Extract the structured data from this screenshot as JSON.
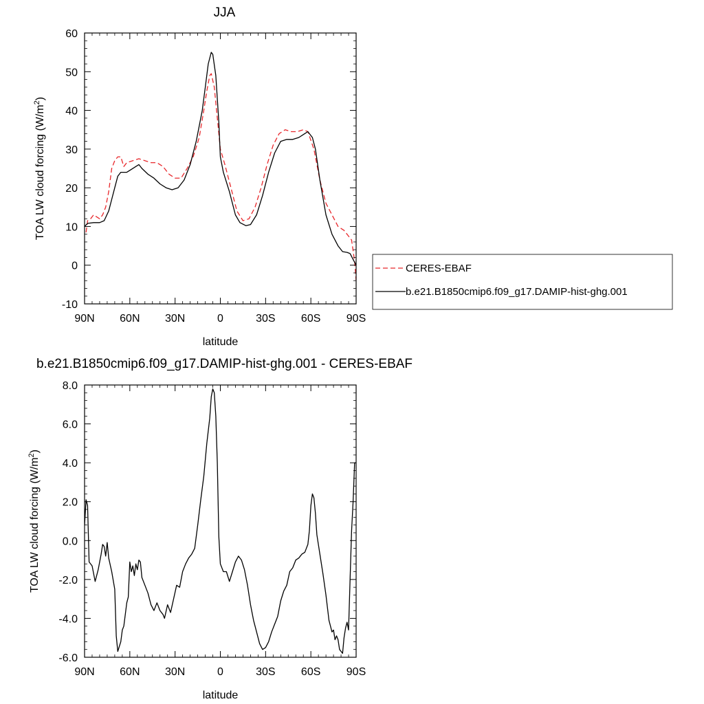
{
  "chart_data": [
    {
      "type": "line",
      "title": "JJA",
      "xlabel": "latitude",
      "ylabel": "TOA LW cloud forcing (W/m",
      "ylabel_sup": "2",
      "ylabel_end": ")",
      "xlim": [
        90,
        -90
      ],
      "ylim": [
        -10,
        60
      ],
      "x_ticks": [
        90,
        60,
        30,
        0,
        -30,
        -60,
        -90
      ],
      "x_tick_labels": [
        "90N",
        "60N",
        "30N",
        "0",
        "30S",
        "60S",
        "90S"
      ],
      "y_ticks": [
        -10,
        0,
        10,
        20,
        30,
        40,
        50,
        60
      ],
      "y_tick_labels": [
        "-10",
        "0",
        "10",
        "20",
        "30",
        "40",
        "50",
        "60"
      ],
      "legend_position": "right",
      "series": [
        {
          "name": "CERES-EBAF",
          "color": "#e8262a",
          "dash": "dashed",
          "points": [
            [
              89,
              8.5
            ],
            [
              88,
              11.5
            ],
            [
              86,
              12
            ],
            [
              84,
              13
            ],
            [
              82,
              12.5
            ],
            [
              80,
              12
            ],
            [
              78,
              13
            ],
            [
              76,
              15
            ],
            [
              74,
              19
            ],
            [
              72,
              25
            ],
            [
              70,
              27
            ],
            [
              68,
              28
            ],
            [
              66,
              28
            ],
            [
              64,
              25.5
            ],
            [
              62,
              26.5
            ],
            [
              58,
              27
            ],
            [
              54,
              27.5
            ],
            [
              50,
              27
            ],
            [
              46,
              26.5
            ],
            [
              42,
              26.5
            ],
            [
              38,
              25.5
            ],
            [
              34,
              23.5
            ],
            [
              30,
              22.5
            ],
            [
              26,
              22.5
            ],
            [
              22,
              25
            ],
            [
              18,
              28
            ],
            [
              14,
              33
            ],
            [
              11,
              40
            ],
            [
              9,
              45
            ],
            [
              7,
              49
            ],
            [
              6,
              49.5
            ],
            [
              4,
              46
            ],
            [
              2,
              38
            ],
            [
              0,
              30
            ],
            [
              -3,
              26
            ],
            [
              -7,
              20
            ],
            [
              -11,
              14
            ],
            [
              -15,
              11.5
            ],
            [
              -19,
              12
            ],
            [
              -23,
              15
            ],
            [
              -27,
              20
            ],
            [
              -31,
              26
            ],
            [
              -35,
              31
            ],
            [
              -39,
              34
            ],
            [
              -43,
              35
            ],
            [
              -47,
              34.5
            ],
            [
              -51,
              34.5
            ],
            [
              -55,
              35
            ],
            [
              -58,
              34.5
            ],
            [
              -62,
              30
            ],
            [
              -66,
              22
            ],
            [
              -70,
              16
            ],
            [
              -74,
              13
            ],
            [
              -78,
              10
            ],
            [
              -82,
              9
            ],
            [
              -85,
              7.5
            ],
            [
              -87,
              6.5
            ],
            [
              -89,
              1
            ],
            [
              -90,
              -4
            ]
          ]
        },
        {
          "name": "b.e21.B1850cmip6.f09_g17.DAMIP-hist-ghg.001",
          "color": "#000000",
          "dash": "solid",
          "points": [
            [
              90,
              10
            ],
            [
              88,
              10.8
            ],
            [
              84,
              11
            ],
            [
              80,
              11
            ],
            [
              77,
              11.5
            ],
            [
              74,
              14
            ],
            [
              72,
              17
            ],
            [
              70,
              20
            ],
            [
              68,
              23
            ],
            [
              66,
              24
            ],
            [
              62,
              24
            ],
            [
              60,
              24.5
            ],
            [
              56,
              25.5
            ],
            [
              54,
              26
            ],
            [
              52,
              25
            ],
            [
              48,
              23.5
            ],
            [
              44,
              22.5
            ],
            [
              40,
              21
            ],
            [
              36,
              20
            ],
            [
              32,
              19.5
            ],
            [
              28,
              20
            ],
            [
              24,
              22
            ],
            [
              20,
              26
            ],
            [
              16,
              32
            ],
            [
              12,
              40
            ],
            [
              10,
              46
            ],
            [
              8,
              52
            ],
            [
              6,
              55
            ],
            [
              5,
              54.5
            ],
            [
              3,
              49
            ],
            [
              1,
              37
            ],
            [
              0,
              28
            ],
            [
              -2,
              24
            ],
            [
              -6,
              19
            ],
            [
              -10,
              13
            ],
            [
              -13,
              11
            ],
            [
              -17,
              10.2
            ],
            [
              -20,
              10.5
            ],
            [
              -24,
              13
            ],
            [
              -28,
              18
            ],
            [
              -32,
              24
            ],
            [
              -36,
              29
            ],
            [
              -40,
              32
            ],
            [
              -44,
              32.5
            ],
            [
              -48,
              32.5
            ],
            [
              -52,
              33
            ],
            [
              -56,
              34
            ],
            [
              -58,
              34.5
            ],
            [
              -61,
              33
            ],
            [
              -63,
              30
            ],
            [
              -66,
              22
            ],
            [
              -70,
              13
            ],
            [
              -74,
              8
            ],
            [
              -78,
              5
            ],
            [
              -81,
              3.5
            ],
            [
              -84,
              3.3
            ],
            [
              -86,
              3
            ],
            [
              -88,
              1.5
            ],
            [
              -90,
              0
            ]
          ]
        }
      ]
    },
    {
      "type": "line",
      "title": "b.e21.B1850cmip6.f09_g17.DAMIP-hist-ghg.001 - CERES-EBAF",
      "xlabel": "latitude",
      "ylabel": "TOA LW cloud forcing (W/m",
      "ylabel_sup": "2",
      "ylabel_end": ")",
      "xlim": [
        90,
        -90
      ],
      "ylim": [
        -6,
        8
      ],
      "x_ticks": [
        90,
        60,
        30,
        0,
        -30,
        -60,
        -90
      ],
      "x_tick_labels": [
        "90N",
        "60N",
        "30N",
        "0",
        "30S",
        "60S",
        "90S"
      ],
      "y_ticks": [
        -6,
        -4,
        -2,
        0,
        2,
        4,
        6,
        8
      ],
      "y_tick_labels": [
        "-6.0",
        "-4.0",
        "-2.0",
        "0.0",
        "2.0",
        "4.0",
        "6.0",
        "8.0"
      ],
      "series": [
        {
          "name": "",
          "color": "#000000",
          "dash": "solid",
          "points": [
            [
              90,
              0.8
            ],
            [
              89,
              2.1
            ],
            [
              88,
              1.8
            ],
            [
              87,
              -1.1
            ],
            [
              85,
              -1.3
            ],
            [
              83,
              -2.1
            ],
            [
              81,
              -1.5
            ],
            [
              79,
              -0.7
            ],
            [
              78,
              -0.2
            ],
            [
              77,
              -0.3
            ],
            [
              76,
              -0.8
            ],
            [
              75,
              -0.1
            ],
            [
              74,
              -0.9
            ],
            [
              72,
              -1.6
            ],
            [
              70,
              -2.5
            ],
            [
              69,
              -4.9
            ],
            [
              68,
              -5.7
            ],
            [
              66,
              -5.2
            ],
            [
              65,
              -4.6
            ],
            [
              64,
              -4.4
            ],
            [
              62,
              -3.2
            ],
            [
              61,
              -2.9
            ],
            [
              60,
              -1.1
            ],
            [
              59,
              -1.6
            ],
            [
              58,
              -1.3
            ],
            [
              57,
              -1.8
            ],
            [
              56,
              -1.2
            ],
            [
              55,
              -1.5
            ],
            [
              54,
              -1.0
            ],
            [
              53,
              -1.1
            ],
            [
              52,
              -1.9
            ],
            [
              50,
              -2.3
            ],
            [
              48,
              -2.7
            ],
            [
              46,
              -3.3
            ],
            [
              44,
              -3.6
            ],
            [
              42,
              -3.2
            ],
            [
              40,
              -3.6
            ],
            [
              38,
              -3.8
            ],
            [
              37,
              -4.0
            ],
            [
              35,
              -3.3
            ],
            [
              33,
              -3.7
            ],
            [
              31,
              -3.0
            ],
            [
              29,
              -2.3
            ],
            [
              27,
              -2.4
            ],
            [
              25,
              -1.6
            ],
            [
              23,
              -1.2
            ],
            [
              21,
              -0.9
            ],
            [
              19,
              -0.7
            ],
            [
              17,
              -0.4
            ],
            [
              15,
              0.8
            ],
            [
              13,
              2.1
            ],
            [
              11,
              3.3
            ],
            [
              9,
              5.0
            ],
            [
              7,
              6.3
            ],
            [
              6,
              7.4
            ],
            [
              5,
              7.8
            ],
            [
              4,
              7.6
            ],
            [
              3,
              6.4
            ],
            [
              2,
              4.0
            ],
            [
              1,
              0.2
            ],
            [
              0,
              -1.2
            ],
            [
              -2,
              -1.6
            ],
            [
              -4,
              -1.6
            ],
            [
              -6,
              -2.1
            ],
            [
              -8,
              -1.6
            ],
            [
              -10,
              -1.1
            ],
            [
              -12,
              -0.8
            ],
            [
              -14,
              -1.0
            ],
            [
              -16,
              -1.5
            ],
            [
              -18,
              -2.3
            ],
            [
              -20,
              -3.3
            ],
            [
              -22,
              -4.1
            ],
            [
              -24,
              -4.7
            ],
            [
              -26,
              -5.3
            ],
            [
              -28,
              -5.6
            ],
            [
              -30,
              -5.5
            ],
            [
              -32,
              -5.2
            ],
            [
              -34,
              -4.7
            ],
            [
              -36,
              -4.3
            ],
            [
              -38,
              -3.9
            ],
            [
              -40,
              -3.1
            ],
            [
              -42,
              -2.6
            ],
            [
              -44,
              -2.3
            ],
            [
              -46,
              -1.6
            ],
            [
              -48,
              -1.4
            ],
            [
              -50,
              -1.0
            ],
            [
              -52,
              -0.9
            ],
            [
              -54,
              -0.7
            ],
            [
              -56,
              -0.6
            ],
            [
              -58,
              -0.2
            ],
            [
              -59,
              0.5
            ],
            [
              -60,
              1.8
            ],
            [
              -61,
              2.4
            ],
            [
              -62,
              2.2
            ],
            [
              -63,
              1.4
            ],
            [
              -64,
              0.3
            ],
            [
              -66,
              -0.7
            ],
            [
              -68,
              -1.7
            ],
            [
              -70,
              -2.8
            ],
            [
              -72,
              -4.1
            ],
            [
              -74,
              -4.7
            ],
            [
              -75,
              -4.6
            ],
            [
              -76,
              -5.1
            ],
            [
              -77,
              -4.9
            ],
            [
              -78,
              -5.1
            ],
            [
              -79,
              -5.6
            ],
            [
              -80,
              -5.7
            ],
            [
              -81,
              -5.8
            ],
            [
              -82,
              -5.0
            ],
            [
              -83,
              -4.5
            ],
            [
              -84,
              -4.2
            ],
            [
              -85,
              -4.6
            ],
            [
              -86,
              -2.0
            ],
            [
              -87,
              0.5
            ],
            [
              -88,
              2.0
            ],
            [
              -89,
              4.0
            ],
            [
              -90,
              4.0
            ]
          ]
        }
      ]
    }
  ]
}
